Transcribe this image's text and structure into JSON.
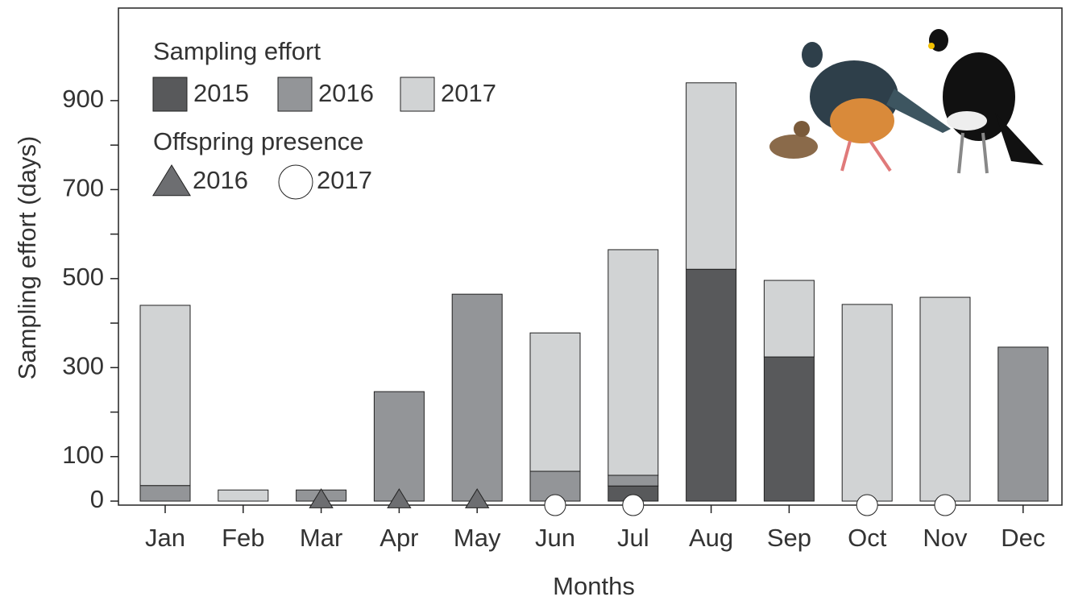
{
  "chart_data": {
    "type": "stacked_bar",
    "y_label": "Sampling effort (days)",
    "x_label": "Months",
    "categories": [
      "Jan",
      "Feb",
      "Mar",
      "Apr",
      "May",
      "Jun",
      "Jul",
      "Aug",
      "Sep",
      "Oct",
      "Nov",
      "Dec"
    ],
    "legend_title": "Sampling effort",
    "series": [
      {
        "name": "2015",
        "color": "#58595b",
        "values": [
          null,
          null,
          null,
          null,
          null,
          null,
          34,
          521,
          324,
          null,
          null,
          null
        ]
      },
      {
        "name": "2016",
        "color": "#939598",
        "values": [
          35,
          null,
          25,
          246,
          465,
          67,
          24,
          null,
          null,
          null,
          null,
          346
        ]
      },
      {
        "name": "2017",
        "color": "#d1d3d4",
        "values": [
          405,
          25,
          null,
          null,
          null,
          311,
          507,
          419,
          172,
          442,
          458,
          null
        ]
      }
    ],
    "markers_title": "Offspring presence",
    "markers": [
      {
        "name": "2016",
        "shape": "triangle",
        "color": "#6d6e71",
        "months": [
          "Mar",
          "Apr",
          "May"
        ]
      },
      {
        "name": "2017",
        "shape": "circle",
        "color": "#ffffff",
        "months": [
          "Jun",
          "Jul",
          "Oct",
          "Nov"
        ]
      }
    ],
    "ylim": [
      -9,
      1108
    ],
    "yticks": [
      0,
      100,
      300,
      500,
      700,
      900
    ],
    "minor_yticks": [
      200,
      400,
      600,
      800
    ]
  }
}
